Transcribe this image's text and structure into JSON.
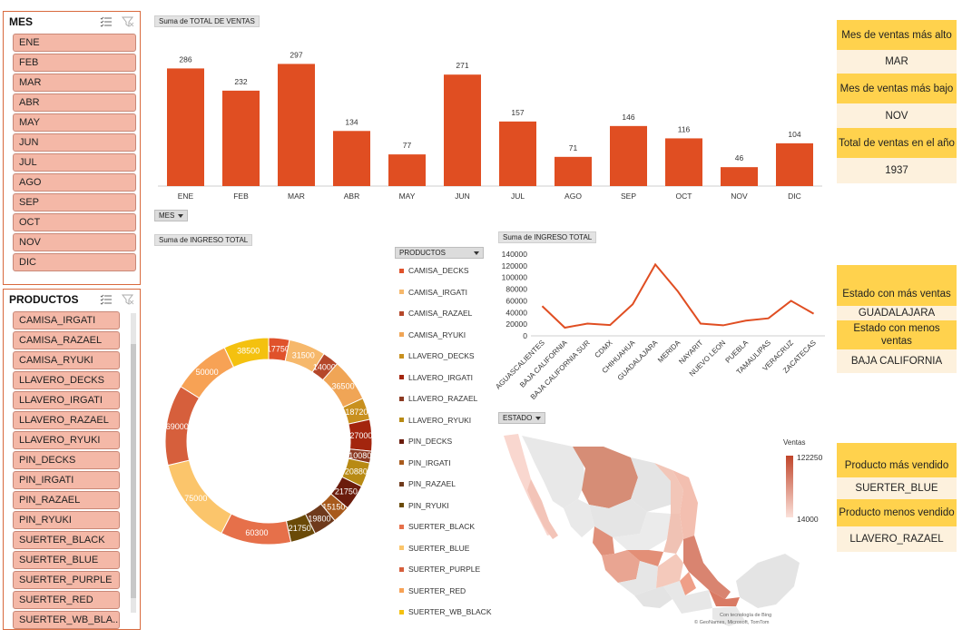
{
  "slicer_mes": {
    "title": "MES",
    "items": [
      "ENE",
      "FEB",
      "MAR",
      "ABR",
      "MAY",
      "JUN",
      "JUL",
      "AGO",
      "SEP",
      "OCT",
      "NOV",
      "DIC"
    ]
  },
  "slicer_productos": {
    "title": "PRODUCTOS",
    "items": [
      "CAMISA_IRGATI",
      "CAMISA_RAZAEL",
      "CAMISA_RYUKI",
      "LLAVERO_DECKS",
      "LLAVERO_IRGATI",
      "LLAVERO_RAZAEL",
      "LLAVERO_RYUKI",
      "PIN_DECKS",
      "PIN_IRGATI",
      "PIN_RAZAEL",
      "PIN_RYUKI",
      "SUERTER_BLACK",
      "SUERTER_BLUE",
      "SUERTER_PURPLE",
      "SUERTER_RED",
      "SUERTER_WB_BLA..."
    ]
  },
  "bar_chart": {
    "tag": "Suma de TOTAL DE VENTAS",
    "field_button": "MES"
  },
  "donut_chart": {
    "tag": "Suma de INGRESO  TOTAL",
    "legend_button": "PRODUCTOS",
    "legend": [
      {
        "label": "CAMISA_DECKS",
        "color": "#e0522b"
      },
      {
        "label": "CAMISA_IRGATI",
        "color": "#f6b86b"
      },
      {
        "label": "CAMISA_RAZAEL",
        "color": "#b5472a"
      },
      {
        "label": "CAMISA_RYUKI",
        "color": "#f0a556"
      },
      {
        "label": "LLAVERO_DECKS",
        "color": "#c8901e"
      },
      {
        "label": "LLAVERO_IRGATI",
        "color": "#a3250e"
      },
      {
        "label": "LLAVERO_RAZAEL",
        "color": "#8c3a22"
      },
      {
        "label": "LLAVERO_RYUKI",
        "color": "#b88a14"
      },
      {
        "label": "PIN_DECKS",
        "color": "#6b1c0c"
      },
      {
        "label": "PIN_IRGATI",
        "color": "#a85a1c"
      },
      {
        "label": "PIN_RAZAEL",
        "color": "#6f3a1c"
      },
      {
        "label": "PIN_RYUKI",
        "color": "#6a4a08"
      },
      {
        "label": "SUERTER_BLACK",
        "color": "#e6704a"
      },
      {
        "label": "SUERTER_BLUE",
        "color": "#fbc56b"
      },
      {
        "label": "SUERTER_PURPLE",
        "color": "#d65f3c"
      },
      {
        "label": "SUERTER_RED",
        "color": "#f7a255"
      },
      {
        "label": "SUERTER_WB_BLACK",
        "color": "#f4c10f"
      }
    ]
  },
  "line_chart": {
    "tag": "Suma de INGRESO  TOTAL"
  },
  "map": {
    "field_button": "ESTADO",
    "legend_title": "Ventas",
    "legend_max": "122250",
    "legend_min": "14000",
    "credit_1": "Con tecnología de Bing",
    "credit_2": "© GeoNames, Microsoft, TomTom"
  },
  "kpis": {
    "mes_alto_label": "Mes de ventas más alto",
    "mes_alto_value": "MAR",
    "mes_bajo_label": "Mes de ventas más bajo",
    "mes_bajo_value": "NOV",
    "total_label": "Total de ventas en el año",
    "total_value": "1937",
    "estado_mas_label": "Estado con más ventas",
    "estado_mas_value": "GUADALAJARA",
    "estado_menos_label": "Estado con menos ventas",
    "estado_menos_value": "BAJA CALIFORNIA",
    "prod_mas_label": "Producto más vendido",
    "prod_mas_value": "SUERTER_BLUE",
    "prod_menos_label": "Producto menos vendido",
    "prod_menos_value": "LLAVERO_RAZAEL"
  },
  "chart_data": [
    {
      "type": "bar",
      "categories": [
        "ENE",
        "FEB",
        "MAR",
        "ABR",
        "MAY",
        "JUN",
        "JUL",
        "AGO",
        "SEP",
        "OCT",
        "NOV",
        "DIC"
      ],
      "values": [
        286,
        232,
        297,
        134,
        77,
        271,
        157,
        71,
        146,
        116,
        46,
        104
      ],
      "color": "#e04e22",
      "ylim": [
        0,
        320
      ]
    },
    {
      "type": "pie",
      "hole": true,
      "slices": [
        {
          "label": "CAMISA_DECKS",
          "value": 17750,
          "color": "#e0522b"
        },
        {
          "label": "CAMISA_IRGATI",
          "value": 31500,
          "color": "#f6b86b"
        },
        {
          "label": "CAMISA_RAZAEL",
          "value": 14000,
          "color": "#b5472a"
        },
        {
          "label": "CAMISA_RYUKI",
          "value": 36500,
          "color": "#f0a556"
        },
        {
          "label": "LLAVERO_DECKS",
          "value": 18720,
          "color": "#c8901e"
        },
        {
          "label": "LLAVERO_IRGATI",
          "value": 27000,
          "color": "#a3250e"
        },
        {
          "label": "LLAVERO_RAZAEL",
          "value": 10080,
          "color": "#8c3a22"
        },
        {
          "label": "LLAVERO_RYUKI",
          "value": 20880,
          "color": "#b88a14"
        },
        {
          "label": "PIN_DECKS",
          "value": 21750,
          "color": "#6b1c0c"
        },
        {
          "label": "PIN_IRGATI",
          "value": 15150,
          "color": "#a85a1c"
        },
        {
          "label": "PIN_RAZAEL",
          "value": 19800,
          "color": "#6f3a1c"
        },
        {
          "label": "PIN_RYUKI",
          "value": 21750,
          "color": "#6a4a08"
        },
        {
          "label": "SUERTER_BLACK",
          "value": 60300,
          "color": "#e6704a"
        },
        {
          "label": "SUERTER_BLUE",
          "value": 75000,
          "color": "#fbc56b"
        },
        {
          "label": "SUERTER_PURPLE",
          "value": 69000,
          "color": "#d65f3c"
        },
        {
          "label": "SUERTER_RED",
          "value": 50000,
          "color": "#f7a255"
        },
        {
          "label": "SUERTER_WB_BLACK",
          "value": 38500,
          "color": "#f4c10f"
        }
      ]
    },
    {
      "type": "line",
      "categories": [
        "AGUASCALIENTES",
        "BAJA CALIFORNIA",
        "BAJA CALIFORNIA SUR",
        "CDMX",
        "CHIHUAHUA",
        "GUADALAJARA",
        "MERIDA",
        "NAYARIT",
        "NUEVO LEON",
        "PUEBLA",
        "TAMAULIPAS",
        "VERACRUZ",
        "ZACATECAS"
      ],
      "values": [
        51000,
        14000,
        21000,
        18500,
        54000,
        122250,
        76000,
        21000,
        18000,
        26000,
        30000,
        60000,
        38000
      ],
      "yticks": [
        "0",
        "20000",
        "40000",
        "60000",
        "80000",
        "100000",
        "120000",
        "140000"
      ],
      "ylim": [
        0,
        140000
      ],
      "color": "#e04e22"
    }
  ]
}
